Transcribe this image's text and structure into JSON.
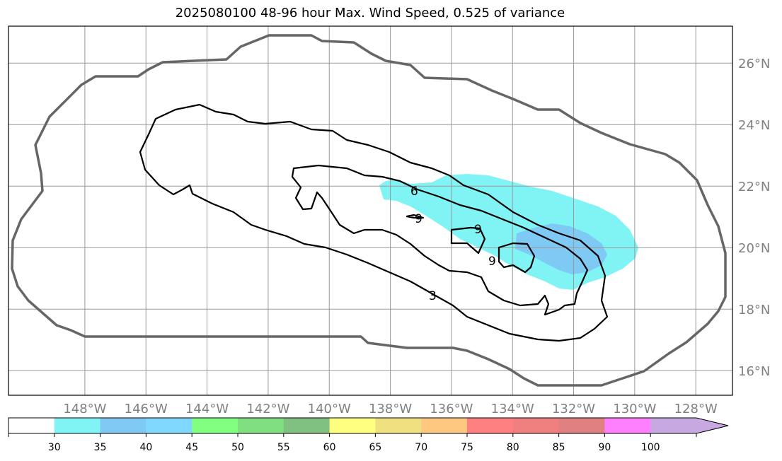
{
  "title": "2025080100 48-96 hour Max. Wind Speed, 0.525 of variance",
  "chart_data": {
    "type": "map-contour",
    "title": "2025080100 48-96 hour Max. Wind Speed, 0.525 of variance",
    "lon_range": [
      -150.5,
      -126.8
    ],
    "lat_range": [
      15.2,
      27.2
    ],
    "lon_ticks": [
      "148°W",
      "146°W",
      "144°W",
      "142°W",
      "140°W",
      "138°W",
      "136°W",
      "134°W",
      "132°W",
      "130°W",
      "128°W"
    ],
    "lat_ticks": [
      "16°N",
      "18°N",
      "20°N",
      "22°N",
      "24°N",
      "26°N"
    ],
    "grid": true,
    "contour_levels": [
      3,
      6,
      9
    ],
    "contour_labels": [
      "6",
      "9",
      "9",
      "9",
      "3"
    ],
    "filled_regions": [
      {
        "level_min": 30,
        "level_max": 35,
        "color": "#80f4f4"
      },
      {
        "level_min": 35,
        "level_max": 40,
        "color": "#7fc9f5"
      }
    ],
    "colorbar": {
      "boundaries": [
        "30",
        "35",
        "40",
        "45",
        "50",
        "55",
        "60",
        "65",
        "70",
        "75",
        "80",
        "85",
        "90",
        "100"
      ],
      "colors": [
        "#ffffff",
        "#80f4f4",
        "#7fc9f5",
        "#80d8ff",
        "#80ff80",
        "#7ee07e",
        "#80c080",
        "#ffff80",
        "#f0e080",
        "#ffc880",
        "#ff8080",
        "#f08080",
        "#e08080",
        "#ff80ff",
        "#c8a8e0"
      ],
      "extend": "max"
    }
  }
}
